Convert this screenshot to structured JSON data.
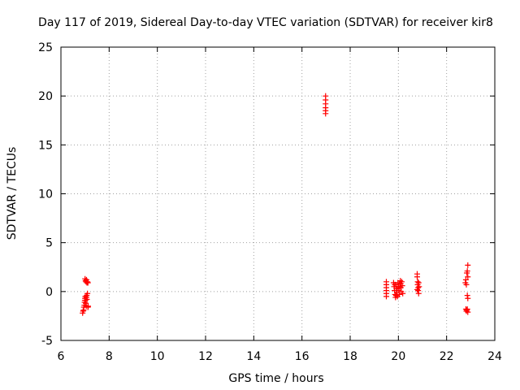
{
  "chart_data": {
    "type": "scatter",
    "title": "Day 117 of 2019, Sidereal Day-to-day VTEC variation (SDTVAR) for receiver kir8",
    "xlabel": "GPS time / hours",
    "ylabel": "SDTVAR / TECUs",
    "xlim": [
      6,
      24
    ],
    "ylim": [
      -5,
      25
    ],
    "xticks": [
      "6",
      "8",
      "10",
      "12",
      "14",
      "16",
      "18",
      "20",
      "22",
      "24"
    ],
    "yticks": [
      "-5",
      "0",
      "5",
      "10",
      "15",
      "20",
      "25"
    ],
    "grid": true,
    "marker": "+",
    "color": "#ff0000",
    "series": [
      {
        "name": "SDTVAR",
        "points": [
          [
            6.9,
            -2.2
          ],
          [
            6.92,
            -2.0
          ],
          [
            6.94,
            -1.9
          ],
          [
            6.95,
            -1.6
          ],
          [
            6.97,
            -1.4
          ],
          [
            6.98,
            -1.1
          ],
          [
            6.99,
            -0.9
          ],
          [
            7.0,
            -0.7
          ],
          [
            7.01,
            -0.5
          ],
          [
            7.02,
            -0.9
          ],
          [
            7.03,
            -1.2
          ],
          [
            7.05,
            -1.5
          ],
          [
            7.06,
            -0.6
          ],
          [
            7.07,
            -0.4
          ],
          [
            7.08,
            -0.8
          ],
          [
            7.1,
            -0.2
          ],
          [
            7.12,
            -1.6
          ],
          [
            7.13,
            -1.5
          ],
          [
            7.0,
            1.3
          ],
          [
            7.02,
            1.1
          ],
          [
            7.04,
            1.0
          ],
          [
            7.06,
            1.2
          ],
          [
            7.08,
            0.9
          ],
          [
            7.1,
            1.0
          ],
          [
            7.12,
            0.9
          ],
          [
            16.98,
            20.0
          ],
          [
            16.98,
            19.6
          ],
          [
            16.98,
            19.2
          ],
          [
            16.98,
            18.8
          ],
          [
            16.98,
            18.5
          ],
          [
            16.98,
            18.2
          ],
          [
            19.5,
            1.0
          ],
          [
            19.5,
            0.7
          ],
          [
            19.5,
            0.4
          ],
          [
            19.5,
            0.1
          ],
          [
            19.5,
            -0.2
          ],
          [
            19.5,
            -0.5
          ],
          [
            19.8,
            0.9
          ],
          [
            19.82,
            0.5
          ],
          [
            19.84,
            0.1
          ],
          [
            19.86,
            -0.3
          ],
          [
            19.88,
            -0.6
          ],
          [
            19.9,
            0.7
          ],
          [
            19.92,
            0.3
          ],
          [
            19.94,
            -0.1
          ],
          [
            19.96,
            -0.5
          ],
          [
            19.98,
            0.9
          ],
          [
            20.0,
            0.5
          ],
          [
            20.02,
            0.1
          ],
          [
            20.04,
            -0.3
          ],
          [
            20.06,
            0.8
          ],
          [
            20.08,
            1.1
          ],
          [
            20.1,
            0.4
          ],
          [
            20.12,
            0.0
          ],
          [
            20.14,
            1.0
          ],
          [
            20.16,
            0.6
          ],
          [
            20.18,
            -0.2
          ],
          [
            19.85,
            0.7
          ],
          [
            19.95,
            0.3
          ],
          [
            20.05,
            0.5
          ],
          [
            19.9,
            -0.4
          ],
          [
            20.1,
            0.8
          ],
          [
            20.78,
            1.8
          ],
          [
            20.78,
            1.5
          ],
          [
            20.8,
            1.0
          ],
          [
            20.8,
            0.7
          ],
          [
            20.82,
            0.4
          ],
          [
            20.82,
            0.1
          ],
          [
            20.84,
            -0.2
          ],
          [
            20.84,
            0.9
          ],
          [
            20.78,
            0.2
          ],
          [
            20.86,
            0.5
          ],
          [
            22.78,
            0.9
          ],
          [
            22.8,
            1.2
          ],
          [
            22.82,
            0.7
          ],
          [
            22.84,
            1.9
          ],
          [
            22.86,
            2.1
          ],
          [
            22.88,
            2.7
          ],
          [
            22.88,
            1.5
          ],
          [
            22.86,
            -0.4
          ],
          [
            22.88,
            -0.7
          ],
          [
            22.8,
            -1.8
          ],
          [
            22.82,
            -2.0
          ],
          [
            22.84,
            -1.9
          ],
          [
            22.86,
            -1.8
          ],
          [
            22.88,
            -2.1
          ]
        ]
      }
    ]
  }
}
